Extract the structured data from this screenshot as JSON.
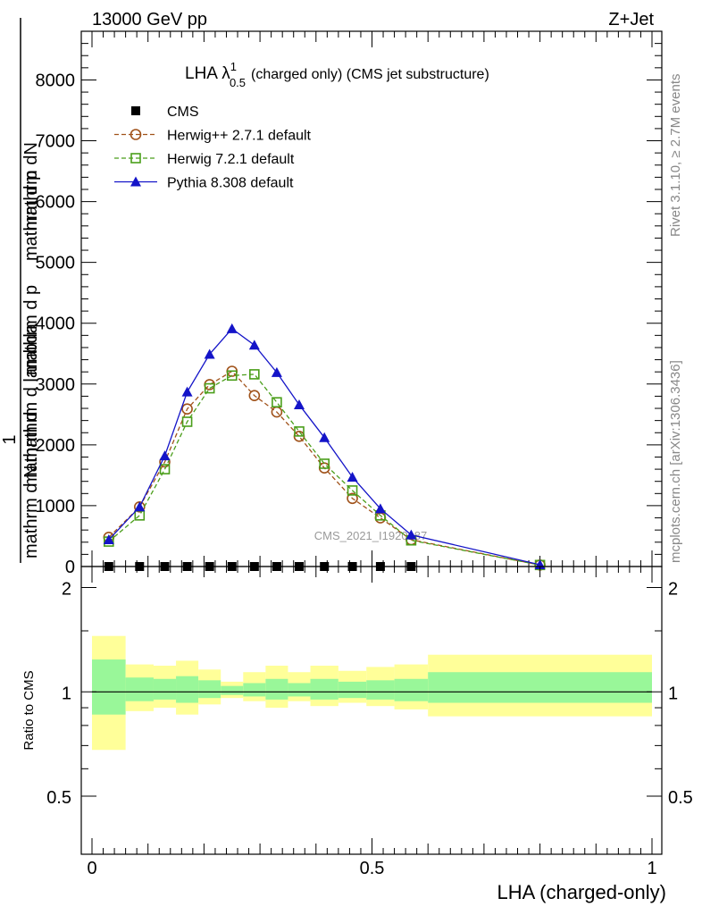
{
  "header": {
    "beam": "13000 GeV pp",
    "process": "Z+Jet"
  },
  "side": {
    "rivet": "Rivet 3.1.10, ≥ 2.7M events",
    "mcplots": "mcplots.cern.ch [arXiv:1306.3436]"
  },
  "watermark": "CMS_2021_I1920187",
  "chart_data": [
    {
      "type": "line",
      "title_main": "LHA λ",
      "title_sup": "1",
      "title_sub": "0.5",
      "title_rest": "(charged only) (CMS jet substructure)",
      "ylabel_top": "mathrm dN",
      "ylabel_top2": "mathrm d p",
      "ylabel_top3": "mathrm d lambda",
      "ylabel_one": "1",
      "ylabel_bottom": "mathrm d N",
      "ylabel_mid": "mathrm d",
      "ylabel_frac": "mathrm d p",
      "xlabel": "LHA (charged-only)",
      "xlim": [
        0,
        1
      ],
      "ylim": [
        0,
        8800
      ],
      "yticks": [
        {
          "v": 0,
          "label": "0"
        },
        {
          "v": 1000,
          "label": "1000"
        },
        {
          "v": 2000,
          "label": "2000"
        },
        {
          "v": 3000,
          "label": "3000"
        },
        {
          "v": 4000,
          "label": "4000"
        },
        {
          "v": 5000,
          "label": "5000"
        },
        {
          "v": 6000,
          "label": "6000"
        },
        {
          "v": 7000,
          "label": "7000"
        },
        {
          "v": 8000,
          "label": "8000"
        }
      ],
      "legend_position": "top-left",
      "series": [
        {
          "name": "CMS",
          "color": "#000000",
          "marker": "square-filled",
          "x": [
            0.03,
            0.085,
            0.13,
            0.17,
            0.21,
            0.25,
            0.29,
            0.33,
            0.37,
            0.415,
            0.465,
            0.515,
            0.57
          ],
          "values": [
            0,
            0,
            0,
            0,
            0,
            0,
            0,
            0,
            0,
            0,
            0,
            0,
            0
          ]
        },
        {
          "name": "Herwig++ 2.7.1 default",
          "color": "#a0521a",
          "marker": "circle-open",
          "dash": true,
          "x": [
            0.03,
            0.085,
            0.13,
            0.17,
            0.21,
            0.25,
            0.29,
            0.33,
            0.37,
            0.415,
            0.465,
            0.515,
            0.57,
            0.8
          ],
          "values": [
            480,
            980,
            1720,
            2590,
            2990,
            3210,
            2810,
            2540,
            2140,
            1620,
            1120,
            800,
            440,
            25
          ]
        },
        {
          "name": "Herwig 7.2.1 default",
          "color": "#4a9e1a",
          "marker": "square-open",
          "dash": true,
          "x": [
            0.03,
            0.085,
            0.13,
            0.17,
            0.21,
            0.25,
            0.29,
            0.33,
            0.37,
            0.415,
            0.465,
            0.515,
            0.57,
            0.8
          ],
          "values": [
            410,
            840,
            1600,
            2380,
            2930,
            3140,
            3160,
            2700,
            2220,
            1690,
            1250,
            840,
            430,
            25
          ]
        },
        {
          "name": "Pythia 8.308 default",
          "color": "#1414c8",
          "marker": "triangle-filled",
          "dash": false,
          "x": [
            0.03,
            0.085,
            0.13,
            0.17,
            0.21,
            0.25,
            0.29,
            0.33,
            0.37,
            0.415,
            0.465,
            0.515,
            0.57,
            0.8
          ],
          "values": [
            440,
            980,
            1820,
            2870,
            3490,
            3910,
            3640,
            3190,
            2660,
            2120,
            1470,
            950,
            520,
            30
          ]
        }
      ]
    },
    {
      "type": "area",
      "ylabel": "Ratio to CMS",
      "xlim": [
        0,
        1
      ],
      "ylim": [
        0.34,
        2.3
      ],
      "yticks": [
        {
          "v": 0.5,
          "label": "0.5"
        },
        {
          "v": 1,
          "label": "1"
        },
        {
          "v": 2,
          "label": "2"
        }
      ],
      "xticks": [
        {
          "v": 0,
          "label": "0"
        },
        {
          "v": 0.5,
          "label": "0.5"
        },
        {
          "v": 1,
          "label": "1"
        }
      ],
      "band_colors": {
        "inner": "#99f799",
        "outer": "#ffff99"
      },
      "bins": [
        {
          "x0": 0.0,
          "x1": 0.06,
          "inner": [
            0.86,
            1.24
          ],
          "outer": [
            0.68,
            1.45
          ]
        },
        {
          "x0": 0.06,
          "x1": 0.11,
          "inner": [
            0.94,
            1.1
          ],
          "outer": [
            0.88,
            1.2
          ]
        },
        {
          "x0": 0.11,
          "x1": 0.15,
          "inner": [
            0.95,
            1.09
          ],
          "outer": [
            0.9,
            1.19
          ]
        },
        {
          "x0": 0.15,
          "x1": 0.19,
          "inner": [
            0.93,
            1.11
          ],
          "outer": [
            0.86,
            1.23
          ]
        },
        {
          "x0": 0.19,
          "x1": 0.23,
          "inner": [
            0.96,
            1.08
          ],
          "outer": [
            0.92,
            1.16
          ]
        },
        {
          "x0": 0.23,
          "x1": 0.27,
          "inner": [
            0.98,
            1.04
          ],
          "outer": [
            0.96,
            1.07
          ]
        },
        {
          "x0": 0.27,
          "x1": 0.31,
          "inner": [
            0.97,
            1.06
          ],
          "outer": [
            0.94,
            1.14
          ]
        },
        {
          "x0": 0.31,
          "x1": 0.35,
          "inner": [
            0.95,
            1.09
          ],
          "outer": [
            0.9,
            1.19
          ]
        },
        {
          "x0": 0.35,
          "x1": 0.39,
          "inner": [
            0.97,
            1.06
          ],
          "outer": [
            0.94,
            1.14
          ]
        },
        {
          "x0": 0.39,
          "x1": 0.44,
          "inner": [
            0.95,
            1.09
          ],
          "outer": [
            0.91,
            1.19
          ]
        },
        {
          "x0": 0.44,
          "x1": 0.49,
          "inner": [
            0.96,
            1.07
          ],
          "outer": [
            0.93,
            1.15
          ]
        },
        {
          "x0": 0.49,
          "x1": 0.54,
          "inner": [
            0.95,
            1.08
          ],
          "outer": [
            0.91,
            1.18
          ]
        },
        {
          "x0": 0.54,
          "x1": 0.6,
          "inner": [
            0.94,
            1.09
          ],
          "outer": [
            0.89,
            1.2
          ]
        },
        {
          "x0": 0.6,
          "x1": 1.0,
          "inner": [
            0.93,
            1.14
          ],
          "outer": [
            0.85,
            1.28
          ]
        }
      ],
      "reference": 1
    }
  ]
}
